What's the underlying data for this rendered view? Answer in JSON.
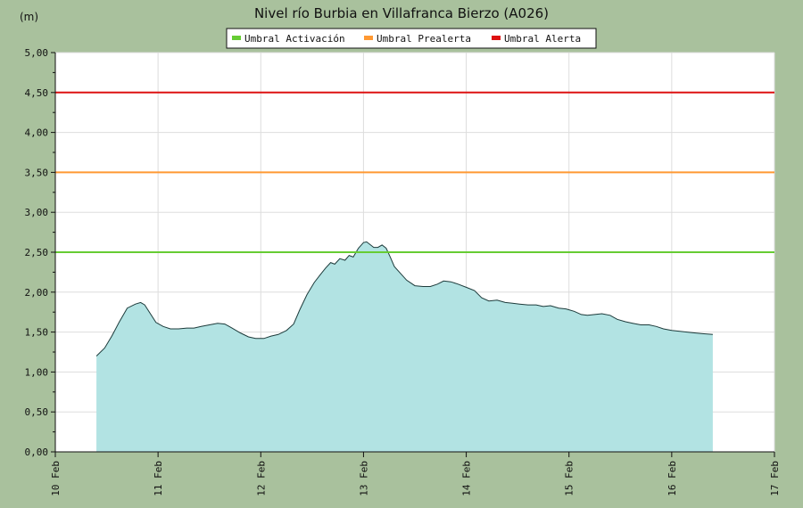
{
  "chart_data": {
    "type": "area",
    "title": "Nivel río Burbia en Villafranca Bierzo  (A026)",
    "ylabel": "(m)",
    "xlabel": "",
    "ylim": [
      0,
      5
    ],
    "xlim": [
      10,
      17
    ],
    "grid": true,
    "legend_placement": "top-center",
    "y_ticks": [
      "0,00",
      "0,50",
      "1,00",
      "1,50",
      "2,00",
      "2,50",
      "3,00",
      "3,50",
      "4,00",
      "4,50",
      "5,00"
    ],
    "x_ticks": [
      "10 Feb",
      "11 Feb",
      "12 Feb",
      "13 Feb",
      "14 Feb",
      "15 Feb",
      "16 Feb",
      "17 Feb"
    ],
    "thresholds": [
      {
        "name": "Umbral Activación",
        "value": 2.5,
        "color": "#66cc33"
      },
      {
        "name": "Umbral Prealerta",
        "value": 3.5,
        "color": "#ff9933"
      },
      {
        "name": "Umbral Alerta",
        "value": 4.5,
        "color": "#dd1111"
      }
    ],
    "series": [
      {
        "color": "#b2e3e3",
        "x": [
          10.4,
          10.48,
          10.55,
          10.62,
          10.7,
          10.78,
          10.83,
          10.87,
          10.93,
          10.98,
          11.05,
          11.12,
          11.2,
          11.28,
          11.35,
          11.42,
          11.5,
          11.58,
          11.65,
          11.72,
          11.8,
          11.88,
          11.95,
          12.03,
          12.1,
          12.17,
          12.25,
          12.32,
          12.38,
          12.45,
          12.52,
          12.58,
          12.63,
          12.68,
          12.72,
          12.77,
          12.82,
          12.86,
          12.9,
          12.95,
          13.0,
          13.03,
          13.06,
          13.1,
          13.14,
          13.18,
          13.22,
          13.26,
          13.3,
          13.35,
          13.42,
          13.5,
          13.58,
          13.65,
          13.72,
          13.78,
          13.85,
          13.92,
          14.0,
          14.08,
          14.15,
          14.22,
          14.3,
          14.38,
          14.45,
          14.52,
          14.6,
          14.68,
          14.75,
          14.82,
          14.9,
          14.97,
          15.05,
          15.12,
          15.18,
          15.25,
          15.32,
          15.4,
          15.47,
          15.55,
          15.62,
          15.7,
          15.78,
          15.85,
          15.92,
          16.0,
          16.08,
          16.15,
          16.22,
          16.3,
          16.4
        ],
        "values": [
          1.2,
          1.3,
          1.45,
          1.62,
          1.8,
          1.85,
          1.87,
          1.84,
          1.72,
          1.62,
          1.57,
          1.54,
          1.54,
          1.55,
          1.55,
          1.57,
          1.59,
          1.61,
          1.6,
          1.55,
          1.49,
          1.44,
          1.42,
          1.42,
          1.45,
          1.47,
          1.52,
          1.6,
          1.78,
          1.97,
          2.12,
          2.22,
          2.3,
          2.37,
          2.35,
          2.42,
          2.4,
          2.46,
          2.44,
          2.55,
          2.62,
          2.63,
          2.6,
          2.56,
          2.56,
          2.59,
          2.55,
          2.44,
          2.32,
          2.25,
          2.15,
          2.08,
          2.07,
          2.07,
          2.1,
          2.14,
          2.13,
          2.1,
          2.06,
          2.02,
          1.93,
          1.89,
          1.9,
          1.87,
          1.86,
          1.85,
          1.84,
          1.84,
          1.82,
          1.83,
          1.8,
          1.79,
          1.76,
          1.72,
          1.71,
          1.72,
          1.73,
          1.71,
          1.66,
          1.63,
          1.61,
          1.59,
          1.59,
          1.57,
          1.54,
          1.52,
          1.51,
          1.5,
          1.49,
          1.48,
          1.47
        ]
      }
    ]
  }
}
